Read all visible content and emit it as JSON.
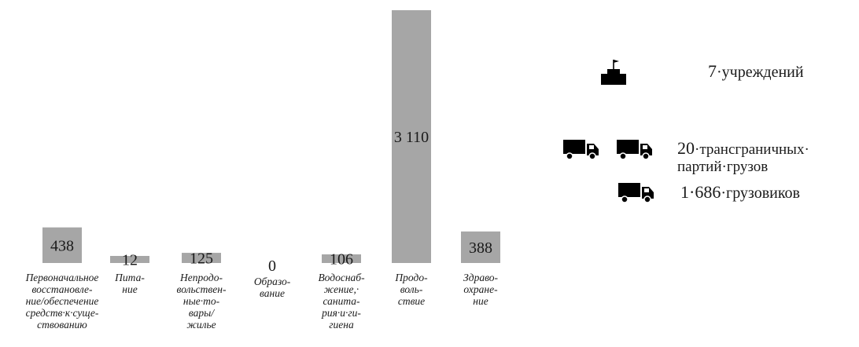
{
  "chart_data": {
    "type": "bar",
    "categories": [
      "Первоначальное\nвосстановле-\nние/обеспечение\nсредств·к·суще-\nствованию",
      "Пита-\nние",
      "Непродо-\nвольствен-\nные·то-\nвары/\nжилье",
      "Образо-\nвание",
      "Водоснаб-\nжение,·\nсанита-\nрия·и·ги-\nгиена",
      "Продо-\nволь-\nствие",
      "Здраво-\nохране-\nние"
    ],
    "values": [
      438,
      12,
      125,
      0,
      106,
      3110,
      388
    ],
    "value_labels": [
      "438",
      "12",
      "125",
      "0",
      "106",
      "3 110",
      "388"
    ],
    "ylim": [
      0,
      3110
    ],
    "grid": false,
    "bar_color": "#a6a6a6",
    "title": "",
    "xlabel": "",
    "ylabel": ""
  },
  "legend": {
    "items": [
      {
        "icon": "school-building-icon",
        "count": "7",
        "text": "·учреждений"
      },
      {
        "icon": "truck-icon",
        "count": "20",
        "text": "·трансграничных·\nпартий·грузов"
      },
      {
        "icon": "truck-icon",
        "count": "1·686",
        "text": "·грузовиков"
      }
    ]
  }
}
